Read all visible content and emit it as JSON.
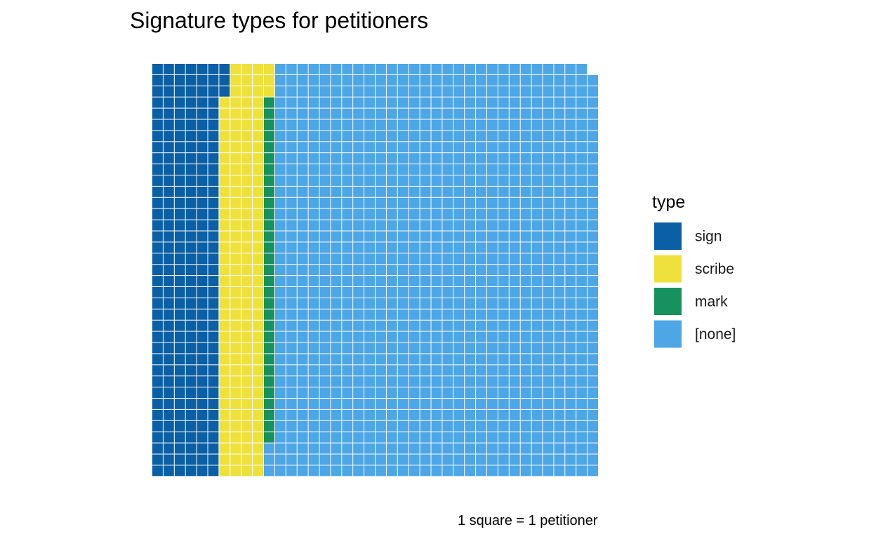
{
  "chart_data": {
    "type": "waffle",
    "title": "Signature types for petitioners",
    "caption": "1 square = 1 petitioner",
    "legend": {
      "title": "type",
      "placement": "right"
    },
    "columns": 40,
    "rows": 37,
    "categories": [
      "sign",
      "scribe",
      "mark",
      "[none]"
    ],
    "values": [
      225,
      148,
      31,
      1075
    ],
    "colors": {
      "sign": "#0b5fa5",
      "scribe": "#efe13c",
      "mark": "#17925f",
      "[none]": "#4da6e6"
    },
    "fill_order": "column-major from top, right-most column shortest"
  }
}
